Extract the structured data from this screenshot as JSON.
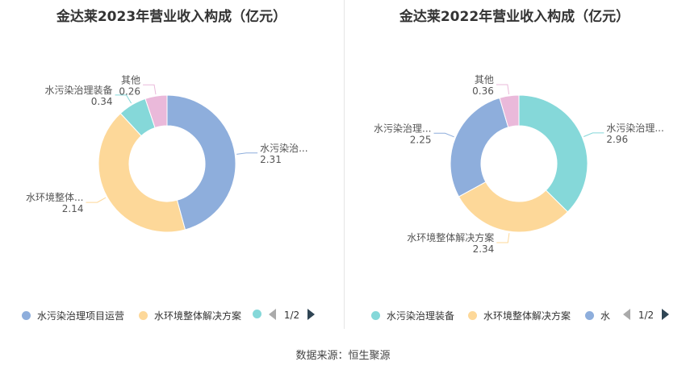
{
  "source": "数据来源：恒生聚源",
  "chart_data": [
    {
      "type": "pie",
      "title": "金达莱2023年营业收入构成（亿元）",
      "series": [
        {
          "name": "水污染治理项目运营",
          "label": "水污染治...",
          "value": 2.31,
          "color": "#8eaedc"
        },
        {
          "name": "水环境整体解决方案",
          "label": "水环境整体...",
          "value": 2.14,
          "color": "#fdd899"
        },
        {
          "name": "水污染治理装备",
          "label": "水污染治理装备",
          "value": 0.34,
          "color": "#85d8d9"
        },
        {
          "name": "其他",
          "label": "其他",
          "value": 0.26,
          "color": "#eab9da"
        }
      ],
      "legend": {
        "items": [
          "水污染治理项目运营",
          "水环境整体解决方案"
        ],
        "page": "1/2"
      }
    },
    {
      "type": "pie",
      "title": "金达莱2022年营业收入构成（亿元）",
      "series": [
        {
          "name": "水污染治理装备",
          "label": "水污染治理...",
          "value": 2.96,
          "color": "#85d8d9"
        },
        {
          "name": "水环境整体解决方案",
          "label": "水环境整体解决方案",
          "value": 2.34,
          "color": "#fdd899"
        },
        {
          "name": "水污染治理项目运营",
          "label": "水污染治理...",
          "value": 2.25,
          "color": "#8eaedc"
        },
        {
          "name": "其他",
          "label": "其他",
          "value": 0.36,
          "color": "#eab9da"
        }
      ],
      "legend": {
        "items": [
          "水污染治理装备",
          "水环境整体解决方案",
          "水"
        ],
        "page": "1/2"
      }
    }
  ]
}
